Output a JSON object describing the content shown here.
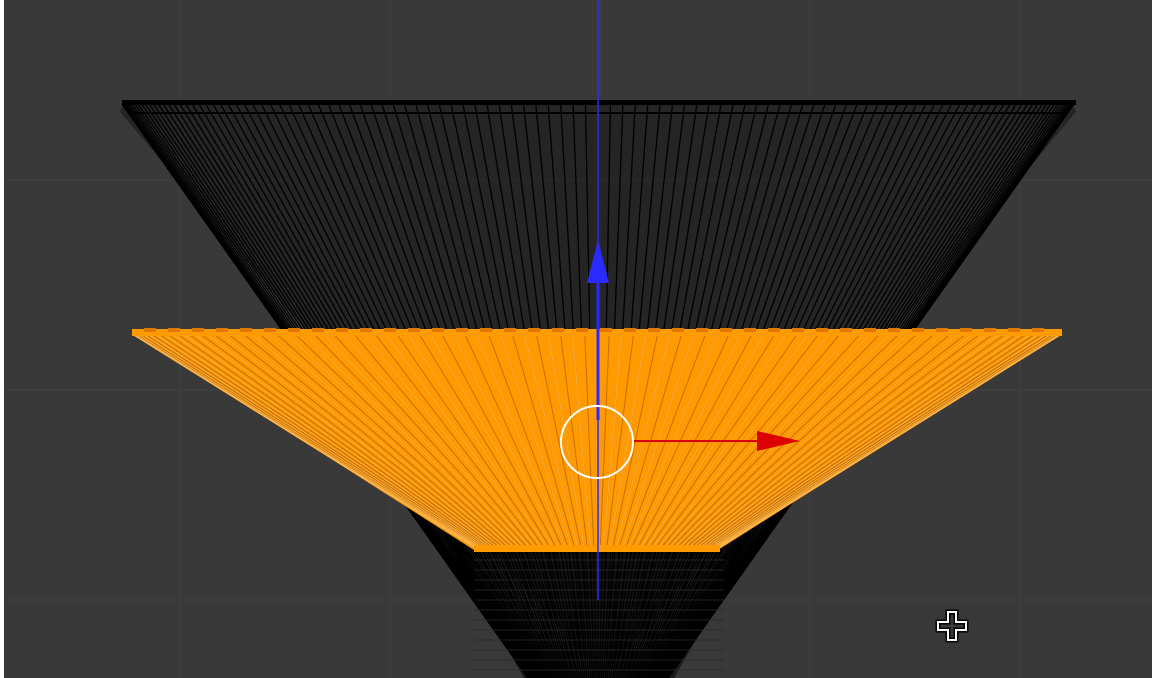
{
  "viewport": {
    "name": "3D Viewport",
    "background_color": "#393939",
    "grid_color": "#414141",
    "wire_color": "#000000",
    "selected_color": "#ff9a00",
    "selected_edge_color": "#ffb84d",
    "z_axis_color": "#2a2aff",
    "x_axis_color": "#dd0000"
  },
  "objects": [
    {
      "name": "upper-cone-mesh",
      "state": "unselected"
    },
    {
      "name": "selected-cone-segment",
      "state": "selected"
    }
  ],
  "icons": [
    "z-axis-line-icon",
    "translate-z-arrow-icon",
    "translate-x-arrow-icon",
    "pivot-circle-icon",
    "3d-cursor-icon"
  ]
}
